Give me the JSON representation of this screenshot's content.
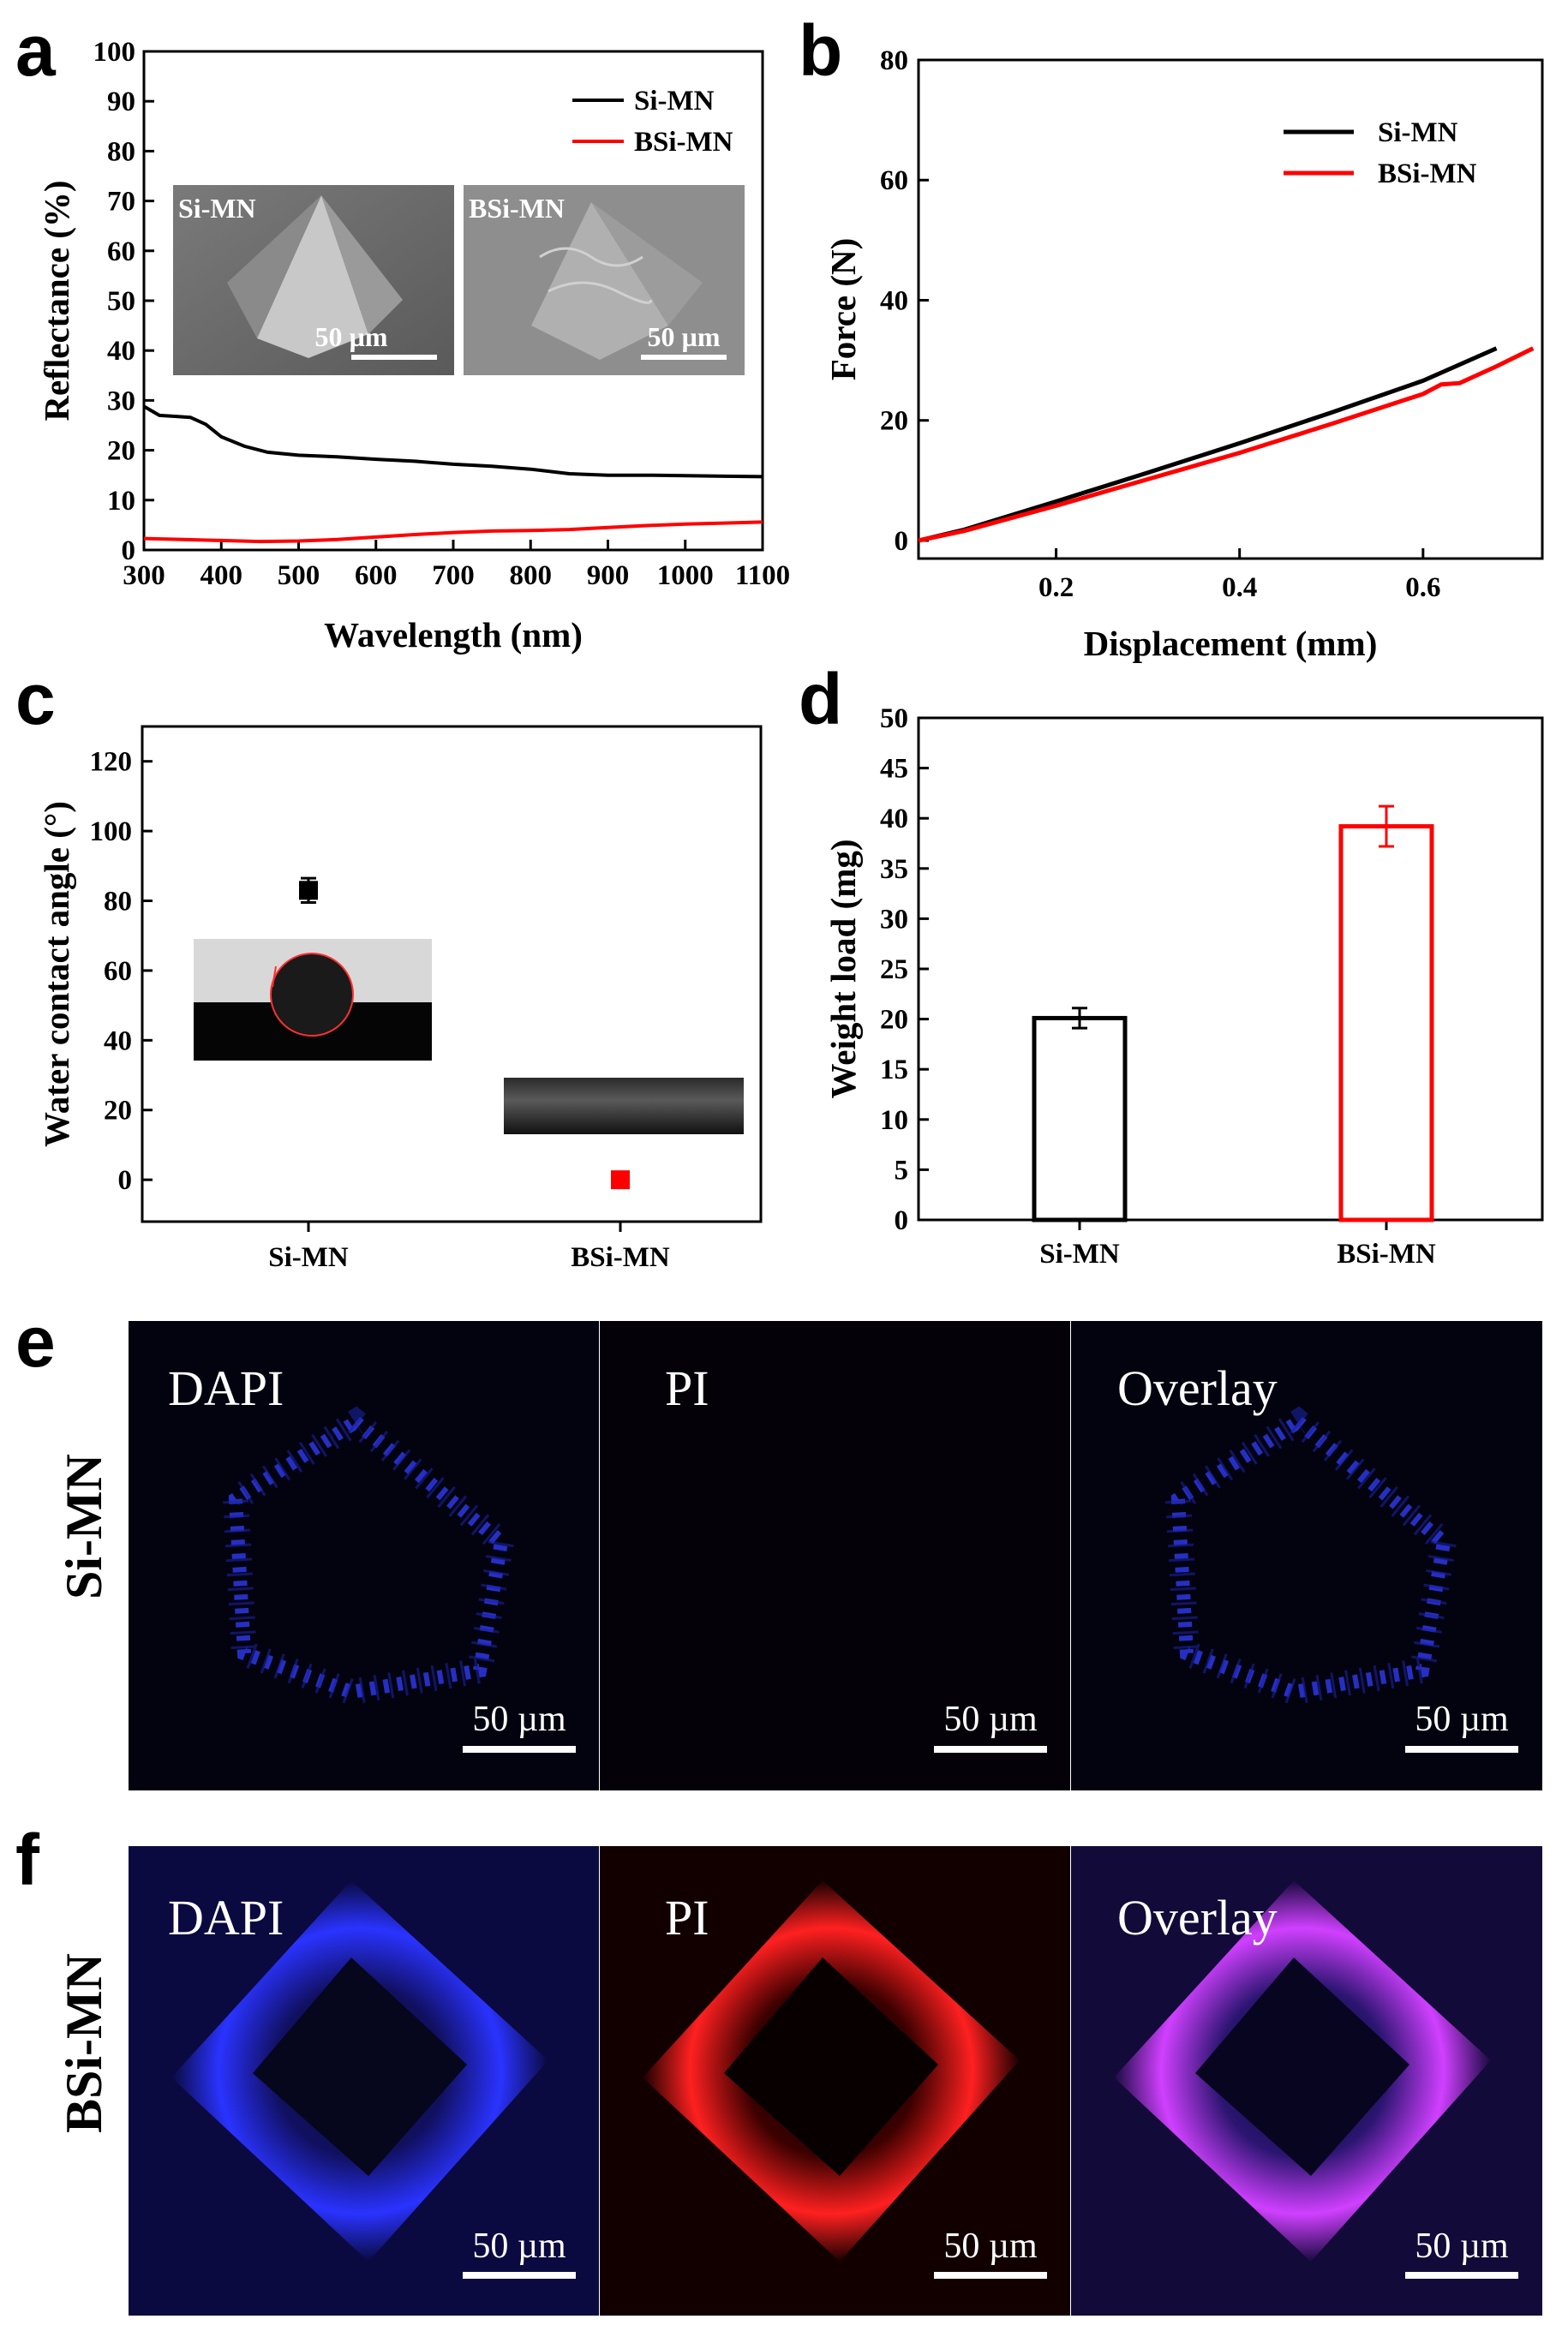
{
  "panels": {
    "a": "a",
    "b": "b",
    "c": "c",
    "d": "d",
    "e": "e",
    "f": "f"
  },
  "colors": {
    "si_mn": "#000000",
    "bsi_mn": "#ff0000",
    "dapi": "#1b2cff",
    "pi": "#ff1a1a",
    "overlay": "#d23cff"
  },
  "chart_data": [
    {
      "id": "a",
      "type": "line",
      "xlabel": "Wavelength (nm)",
      "ylabel": "Reflectance (%)",
      "xlim": [
        300,
        1100
      ],
      "ylim": [
        0,
        100
      ],
      "xticks": [
        300,
        400,
        500,
        600,
        700,
        800,
        900,
        1000,
        1100
      ],
      "yticks": [
        0,
        10,
        20,
        30,
        40,
        50,
        60,
        70,
        80,
        90,
        100
      ],
      "legend": [
        "Si-MN",
        "BSi-MN"
      ],
      "insets": [
        {
          "label": "Si-MN",
          "scale": "50 µm"
        },
        {
          "label": "BSi-MN",
          "scale": "50 µm"
        }
      ],
      "series": [
        {
          "name": "Si-MN",
          "color": "#000000",
          "x": [
            300,
            320,
            340,
            360,
            380,
            400,
            430,
            460,
            500,
            550,
            600,
            650,
            700,
            750,
            800,
            850,
            900,
            950,
            1000,
            1050,
            1100
          ],
          "y": [
            28.8,
            27.0,
            26.8,
            26.6,
            25.2,
            22.7,
            20.8,
            19.6,
            19.0,
            18.7,
            18.2,
            17.8,
            17.2,
            16.8,
            16.2,
            15.3,
            15.0,
            15.0,
            14.9,
            14.8,
            14.7
          ]
        },
        {
          "name": "BSi-MN",
          "color": "#ff0000",
          "x": [
            300,
            350,
            400,
            450,
            500,
            550,
            600,
            650,
            700,
            750,
            800,
            850,
            900,
            950,
            1000,
            1050,
            1100
          ],
          "y": [
            2.3,
            2.1,
            1.9,
            1.7,
            1.8,
            2.1,
            2.6,
            3.1,
            3.5,
            3.8,
            3.9,
            4.1,
            4.5,
            4.9,
            5.2,
            5.4,
            5.6
          ]
        }
      ]
    },
    {
      "id": "b",
      "type": "line",
      "xlabel": "Displacement (mm)",
      "ylabel": "Force (N)",
      "xlim": [
        0.05,
        0.73
      ],
      "ylim": [
        -3,
        80
      ],
      "xticks": [
        0.2,
        0.4,
        0.6
      ],
      "yticks": [
        0,
        20,
        40,
        60,
        80
      ],
      "legend": [
        "Si-MN",
        "BSi-MN"
      ],
      "series": [
        {
          "name": "Si-MN",
          "color": "#000000",
          "x": [
            0.05,
            0.1,
            0.2,
            0.3,
            0.4,
            0.5,
            0.6,
            0.68
          ],
          "y": [
            0,
            1.8,
            6.5,
            11.3,
            16.2,
            21.3,
            26.6,
            32.0
          ]
        },
        {
          "name": "BSi-MN",
          "color": "#ff0000",
          "x": [
            0.05,
            0.1,
            0.2,
            0.3,
            0.4,
            0.5,
            0.6,
            0.62,
            0.64,
            0.68,
            0.72
          ],
          "y": [
            0,
            1.6,
            5.8,
            10.2,
            14.6,
            19.4,
            24.4,
            26.0,
            26.2,
            29.0,
            32.0
          ]
        }
      ]
    },
    {
      "id": "c",
      "type": "scatter",
      "xlabel": "",
      "ylabel": "Water contact angle (°)",
      "categories": [
        "Si-MN",
        "BSi-MN"
      ],
      "ylim": [
        -12,
        130
      ],
      "yticks": [
        0,
        20,
        40,
        60,
        80,
        100,
        120
      ],
      "series": [
        {
          "name": "Si-MN",
          "color": "#000000",
          "value": 83,
          "error": 3.5
        },
        {
          "name": "BSi-MN",
          "color": "#ff0000",
          "value": 0,
          "error": 0
        }
      ]
    },
    {
      "id": "d",
      "type": "bar",
      "xlabel": "",
      "ylabel": "Weight load (mg)",
      "categories": [
        "Si-MN",
        "BSi-MN"
      ],
      "ylim": [
        0,
        50
      ],
      "yticks": [
        0,
        5,
        10,
        15,
        20,
        25,
        30,
        35,
        40,
        45,
        50
      ],
      "series": [
        {
          "name": "Si-MN",
          "color": "#000000",
          "value": 20.1,
          "error": 1.0
        },
        {
          "name": "BSi-MN",
          "color": "#ff0000",
          "value": 39.2,
          "error": 2.0
        }
      ]
    }
  ],
  "micrographs": {
    "e": {
      "row_label": "Si-MN",
      "tiles": [
        {
          "label": "DAPI",
          "scale": "50 µm"
        },
        {
          "label": "PI",
          "scale": "50 µm"
        },
        {
          "label": "Overlay",
          "scale": "50 µm"
        }
      ]
    },
    "f": {
      "row_label": "BSi-MN",
      "tiles": [
        {
          "label": "DAPI",
          "scale": "50 µm"
        },
        {
          "label": "PI",
          "scale": "50 µm"
        },
        {
          "label": "Overlay",
          "scale": "50 µm"
        }
      ]
    }
  }
}
